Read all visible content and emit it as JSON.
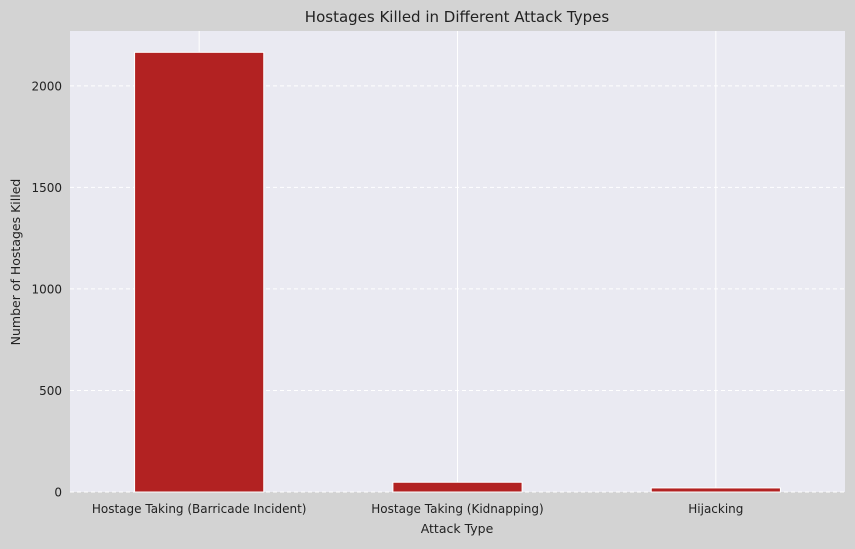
{
  "chart_data": {
    "type": "bar",
    "title": "Hostages Killed in Different Attack Types",
    "xlabel": "Attack Type",
    "ylabel": "Number of Hostages Killed",
    "categories": [
      "Hostage Taking (Barricade Incident)",
      "Hostage Taking (Kidnapping)",
      "Hijacking"
    ],
    "values": [
      2165,
      48,
      20
    ],
    "ylim": [
      0,
      2270
    ],
    "yticks": [
      0,
      500,
      1000,
      1500,
      2000
    ],
    "grid": true,
    "legend": "none",
    "colors": {
      "bar": "#b22222",
      "plot_background": "#eaeaf2",
      "figure_background": "#d3d3d3",
      "grid": "#ffffff"
    }
  }
}
